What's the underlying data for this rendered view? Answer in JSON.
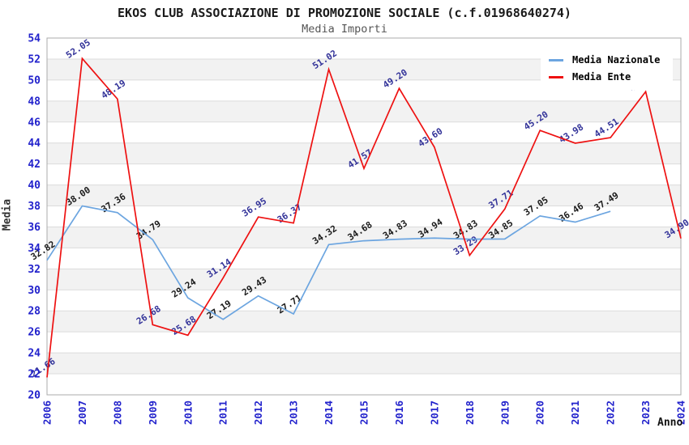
{
  "title": "EKOS CLUB ASSOCIAZIONE DI PROMOZIONE SOCIALE (c.f.01968640274)",
  "subtitle": "Media Importi",
  "axes": {
    "y_label": "Media",
    "x_label": "Anno",
    "y_ticks": [
      20,
      22,
      24,
      26,
      28,
      30,
      32,
      34,
      36,
      38,
      40,
      42,
      44,
      46,
      48,
      50,
      52,
      54
    ]
  },
  "legend": {
    "position": "top-right",
    "items": [
      {
        "label": "Media Nazionale",
        "color": "#6CA5E0"
      },
      {
        "label": "Media Ente",
        "color": "#EE1111"
      }
    ]
  },
  "colors": {
    "nazionale_line": "#6CA5E0",
    "ente_line": "#EE1111",
    "tick_label": "#2222CC",
    "grid_line": "#DCDCDC",
    "band_fill": "#F2F2F2",
    "plot_border": "#ABABAB",
    "nazionale_data_label": "#1A1A1A",
    "ente_data_label": "#333399"
  },
  "chart_data": {
    "type": "line",
    "title": "EKOS CLUB ASSOCIAZIONE DI PROMOZIONE SOCIALE (c.f.01968640274)",
    "subtitle": "Media Importi",
    "xlabel": "Anno",
    "ylabel": "Media",
    "ylim": [
      20,
      54
    ],
    "y_tick_step": 2,
    "grid": "horizontal-bands",
    "legend_position": "top-right",
    "x": [
      2006,
      2007,
      2008,
      2009,
      2010,
      2011,
      2012,
      2013,
      2014,
      2015,
      2016,
      2017,
      2018,
      2019,
      2020,
      2021,
      2022,
      2023,
      2024
    ],
    "series": [
      {
        "name": "Media Nazionale",
        "color": "#6CA5E0",
        "label_color": "#1A1A1A",
        "values": [
          32.82,
          38.0,
          37.36,
          34.79,
          29.24,
          27.19,
          29.43,
          27.71,
          34.32,
          34.68,
          34.83,
          34.94,
          34.83,
          34.85,
          37.05,
          36.46,
          37.49,
          null,
          null
        ]
      },
      {
        "name": "Media Ente",
        "color": "#EE1111",
        "label_color": "#333399",
        "values": [
          21.66,
          52.05,
          48.19,
          26.68,
          25.68,
          31.14,
          36.95,
          36.37,
          51.02,
          41.57,
          49.2,
          43.6,
          33.29,
          37.71,
          45.2,
          43.98,
          44.51,
          48.89,
          34.9
        ]
      }
    ]
  }
}
